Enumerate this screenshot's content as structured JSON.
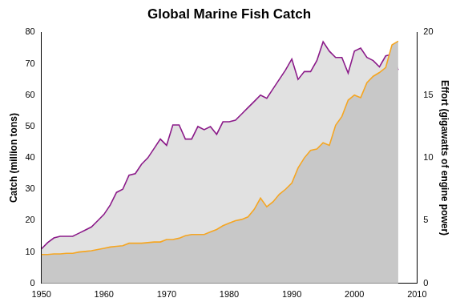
{
  "chart_data": {
    "type": "line",
    "title": "Global Marine Fish Catch",
    "x_label": "",
    "y_label": "Catch (million tons)",
    "y2_label": "Effort (gigawatts of engine power)",
    "x": [
      1950,
      1951,
      1952,
      1953,
      1954,
      1955,
      1956,
      1957,
      1958,
      1959,
      1960,
      1961,
      1962,
      1963,
      1964,
      1965,
      1966,
      1967,
      1968,
      1969,
      1970,
      1971,
      1972,
      1973,
      1974,
      1975,
      1976,
      1977,
      1978,
      1979,
      1980,
      1981,
      1982,
      1983,
      1984,
      1985,
      1986,
      1987,
      1988,
      1989,
      1990,
      1991,
      1992,
      1993,
      1994,
      1995,
      1996,
      1997,
      1998,
      1999,
      2000,
      2001,
      2002,
      2003,
      2004,
      2005,
      2006,
      2007
    ],
    "series": [
      {
        "name": "Catch",
        "color": "#8b1a89",
        "axis": "y",
        "values": [
          11,
          13,
          14.5,
          15,
          15,
          15,
          16,
          17,
          18,
          20,
          22,
          25,
          29,
          30,
          34.5,
          35,
          38,
          40,
          43,
          46,
          44,
          50.5,
          50.5,
          46,
          46,
          50,
          49,
          50,
          47.5,
          51.5,
          51.5,
          52,
          54,
          56,
          58,
          60,
          59,
          62,
          65,
          68,
          71.5,
          65,
          67.5,
          67.5,
          71,
          77,
          74,
          72,
          72,
          67,
          74,
          75,
          72,
          71,
          69,
          72.5,
          73,
          68
        ]
      },
      {
        "name": "Effort",
        "color": "#f5a623",
        "axis": "y2",
        "values": [
          2.3,
          2.3,
          2.35,
          2.35,
          2.4,
          2.4,
          2.5,
          2.55,
          2.6,
          2.7,
          2.8,
          2.9,
          2.95,
          3.0,
          3.2,
          3.2,
          3.2,
          3.25,
          3.3,
          3.3,
          3.5,
          3.5,
          3.6,
          3.8,
          3.9,
          3.9,
          3.9,
          4.1,
          4.3,
          4.6,
          4.8,
          5.0,
          5.1,
          5.3,
          5.9,
          6.8,
          6.1,
          6.5,
          7.1,
          7.5,
          8.0,
          9.2,
          10.0,
          10.6,
          10.7,
          11.2,
          11.0,
          12.6,
          13.3,
          14.6,
          15.0,
          14.8,
          16.0,
          16.5,
          16.8,
          17.2,
          19.0,
          19.3
        ]
      }
    ],
    "xlim": [
      1950,
      2010
    ],
    "xticks": [
      1950,
      1960,
      1970,
      1980,
      1990,
      2000,
      2010
    ],
    "ylim": [
      0,
      80
    ],
    "yticks": [
      0,
      10,
      20,
      30,
      40,
      50,
      60,
      70,
      80
    ],
    "y2lim": [
      0,
      20
    ],
    "y2ticks": [
      0,
      5,
      10,
      15,
      20
    ],
    "grid": false
  }
}
